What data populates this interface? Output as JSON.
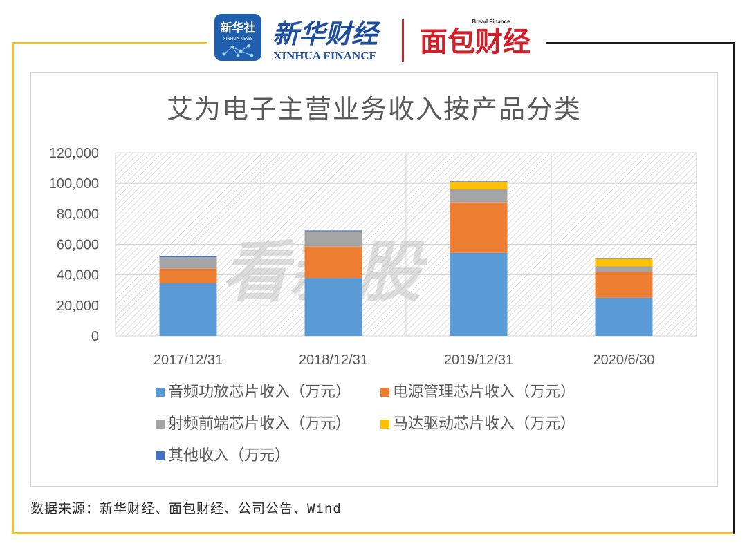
{
  "header": {
    "xinhua_news_agency_logo_text": "新华社",
    "xinhua_news_agency_logo_subtext": "XINHUA NEWS",
    "xinhua_finance_name": "新华财经",
    "xinhua_finance_english": "XINHUA FINANCE",
    "bread_finance_english": "Bread Finance",
    "bread_finance_name": "面包财经"
  },
  "watermark_text": "看新股",
  "source_text": "数据来源：新华财经、面包财经、公司公告、Wind",
  "colors": {
    "frame_gold": "#f0c030",
    "frame_dark": "#1a1a1a",
    "audio_amp": "#5b9bd5",
    "power_mgmt": "#ed7d31",
    "rf_frontend": "#a5a5a5",
    "motor_driver": "#ffc000",
    "other": "#4472c4"
  },
  "chart_data": {
    "type": "bar",
    "stacked": true,
    "title": "艾为电子主营业务收入按产品分类",
    "xlabel": "",
    "ylabel": "",
    "ylim": [
      0,
      120000
    ],
    "yticks": [
      "0",
      "20,000",
      "40,000",
      "60,000",
      "80,000",
      "100,000",
      "120,000"
    ],
    "grid": true,
    "legend_position": "bottom",
    "categories": [
      "2017/12/31",
      "2018/12/31",
      "2019/12/31",
      "2020/6/30"
    ],
    "series": [
      {
        "name": "音频功放芯片收入（万元）",
        "values": [
          34500,
          38000,
          54500,
          25000
        ]
      },
      {
        "name": "电源管理芯片收入（万元）",
        "values": [
          9500,
          20500,
          33000,
          17000
        ]
      },
      {
        "name": "射频前端芯片收入（万元）",
        "values": [
          7500,
          10000,
          8500,
          3500
        ]
      },
      {
        "name": "马达驱动芯片收入（万元）",
        "values": [
          0,
          0,
          4800,
          5000
        ]
      },
      {
        "name": "其他收入（万元）",
        "values": [
          800,
          600,
          500,
          500
        ]
      }
    ]
  }
}
